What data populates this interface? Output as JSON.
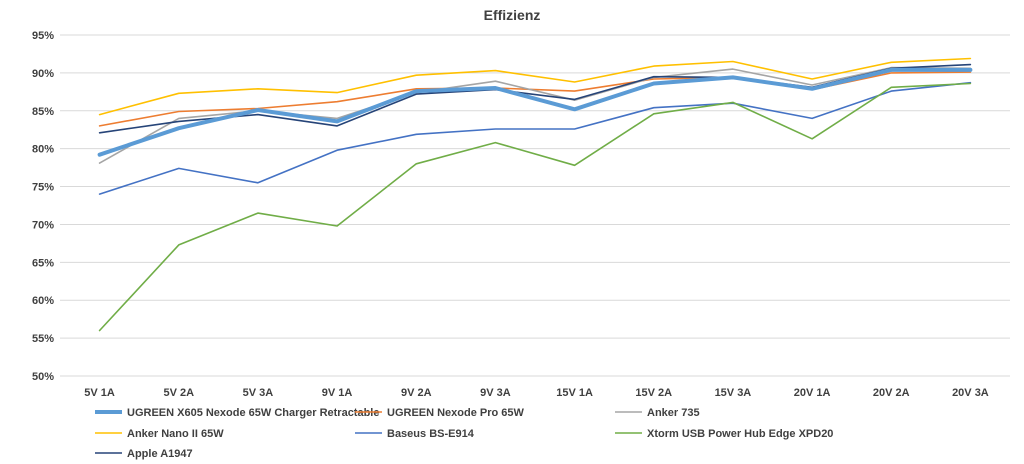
{
  "chart_data": {
    "type": "line",
    "title": "Effizienz",
    "xlabel": "",
    "ylabel": "",
    "categories": [
      "5V 1A",
      "5V 2A",
      "5V 3A",
      "9V 1A",
      "9V 2A",
      "9V 3A",
      "15V 1A",
      "15V 2A",
      "15V 3A",
      "20V 1A",
      "20V 2A",
      "20V 3A"
    ],
    "ylim": [
      50,
      95
    ],
    "yticks": [
      50,
      55,
      60,
      65,
      70,
      75,
      80,
      85,
      90,
      95
    ],
    "ytick_labels": [
      "50%",
      "55%",
      "60%",
      "65%",
      "70%",
      "75%",
      "80%",
      "85%",
      "90%",
      "95%"
    ],
    "grid": true,
    "legend_position": "bottom",
    "series": [
      {
        "name": "UGREEN X605 Nexode 65W Charger Retractable",
        "color": "#5b9bd5",
        "bold": true,
        "values": [
          79.2,
          82.7,
          85.1,
          83.6,
          87.6,
          88.0,
          85.2,
          88.6,
          89.4,
          87.9,
          90.4,
          90.4
        ]
      },
      {
        "name": "UGREEN Nexode Pro 65W",
        "color": "#ed7d31",
        "values": [
          83.0,
          84.9,
          85.3,
          86.2,
          87.9,
          88.0,
          87.6,
          89.2,
          89.4,
          87.8,
          90.0,
          90.1
        ]
      },
      {
        "name": "Anker 735",
        "color": "#a5a5a5",
        "values": [
          78.1,
          84.0,
          85.0,
          84.0,
          87.4,
          88.9,
          86.4,
          89.4,
          90.5,
          88.4,
          90.7,
          90.6
        ]
      },
      {
        "name": "Anker Nano II 65W",
        "color": "#ffc000",
        "values": [
          84.5,
          87.3,
          87.9,
          87.4,
          89.7,
          90.3,
          88.8,
          90.9,
          91.5,
          89.2,
          91.4,
          91.9
        ]
      },
      {
        "name": "Baseus BS-E914",
        "color": "#4472c4",
        "values": [
          74.0,
          77.4,
          75.5,
          79.8,
          81.9,
          82.6,
          82.6,
          85.4,
          86.0,
          84.0,
          87.6,
          88.7
        ]
      },
      {
        "name": "Xtorm USB Power Hub Edge XPD20",
        "color": "#70ad47",
        "values": [
          56.0,
          67.3,
          71.5,
          69.8,
          78.0,
          80.8,
          77.8,
          84.6,
          86.1,
          81.3,
          88.1,
          88.6
        ]
      },
      {
        "name": "Apple A1947",
        "color": "#264478",
        "values": [
          82.1,
          83.6,
          84.5,
          83.0,
          87.2,
          87.8,
          86.5,
          89.5,
          89.4,
          88.1,
          90.6,
          91.1
        ]
      }
    ]
  }
}
